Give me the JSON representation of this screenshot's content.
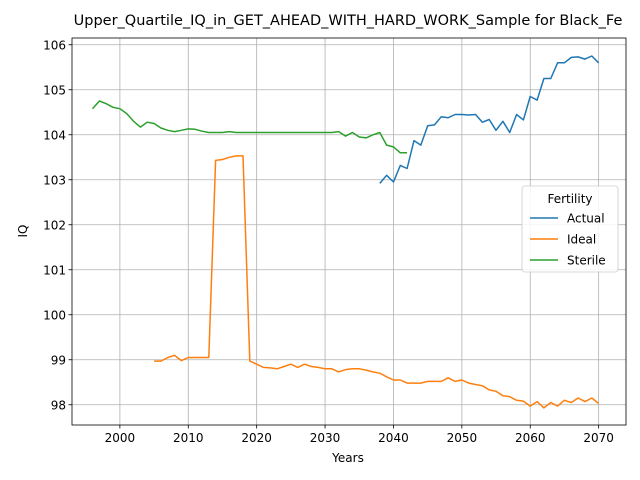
{
  "chart_data": {
    "type": "line",
    "title": "Upper_Quartile_IQ_in_GET_AHEAD_WITH_HARD_WORK_Sample for Black_Fe",
    "xlabel": "Years",
    "ylabel": "IQ",
    "xlim": [
      1993,
      2074
    ],
    "ylim": [
      97.55,
      106.15
    ],
    "xticks": [
      2000,
      2010,
      2020,
      2030,
      2040,
      2050,
      2060,
      2070
    ],
    "yticks": [
      98,
      99,
      100,
      101,
      102,
      103,
      104,
      105,
      106
    ],
    "grid": true,
    "legend": {
      "title": "Fertility",
      "placement": "center-right"
    },
    "series": [
      {
        "name": "Actual",
        "color": "#1f77b4",
        "x": [
          2038,
          2039,
          2040,
          2041,
          2042,
          2043,
          2044,
          2045,
          2046,
          2047,
          2048,
          2049,
          2050,
          2051,
          2052,
          2053,
          2054,
          2055,
          2056,
          2057,
          2058,
          2059,
          2060,
          2061,
          2062,
          2063,
          2064,
          2065,
          2066,
          2067,
          2068,
          2069,
          2070
        ],
        "y": [
          102.92,
          103.1,
          102.95,
          103.32,
          103.25,
          103.87,
          103.77,
          104.2,
          104.22,
          104.4,
          104.38,
          104.45,
          104.45,
          104.44,
          104.45,
          104.28,
          104.34,
          104.1,
          104.3,
          104.05,
          104.45,
          104.33,
          104.85,
          104.77,
          105.25,
          105.25,
          105.6,
          105.6,
          105.72,
          105.73,
          105.68,
          105.75,
          105.6
        ]
      },
      {
        "name": "Ideal",
        "color": "#ff7f0e",
        "x": [
          2005,
          2006,
          2007,
          2008,
          2009,
          2010,
          2011,
          2012,
          2013,
          2014,
          2015,
          2016,
          2017,
          2018,
          2019,
          2020,
          2021,
          2022,
          2023,
          2024,
          2025,
          2026,
          2027,
          2028,
          2029,
          2030,
          2031,
          2032,
          2033,
          2034,
          2035,
          2036,
          2037,
          2038,
          2039,
          2040,
          2041,
          2042,
          2043,
          2044,
          2045,
          2046,
          2047,
          2048,
          2049,
          2050,
          2051,
          2052,
          2053,
          2054,
          2055,
          2056,
          2057,
          2058,
          2059,
          2060,
          2061,
          2062,
          2063,
          2064,
          2065,
          2066,
          2067,
          2068,
          2069,
          2070
        ],
        "y": [
          98.97,
          98.97,
          99.05,
          99.1,
          98.98,
          99.05,
          99.05,
          99.05,
          99.05,
          103.43,
          103.45,
          103.5,
          103.53,
          103.53,
          98.97,
          98.9,
          98.83,
          98.82,
          98.8,
          98.85,
          98.9,
          98.83,
          98.9,
          98.85,
          98.83,
          98.8,
          98.8,
          98.73,
          98.78,
          98.8,
          98.8,
          98.77,
          98.73,
          98.7,
          98.62,
          98.55,
          98.55,
          98.48,
          98.48,
          98.48,
          98.52,
          98.52,
          98.52,
          98.6,
          98.52,
          98.55,
          98.48,
          98.45,
          98.42,
          98.33,
          98.3,
          98.2,
          98.18,
          98.1,
          98.08,
          97.97,
          98.07,
          97.93,
          98.05,
          97.97,
          98.1,
          98.05,
          98.15,
          98.07,
          98.15,
          98.03
        ]
      },
      {
        "name": "Sterile",
        "color": "#2ca02c",
        "x": [
          1996,
          1997,
          1998,
          1999,
          2000,
          2001,
          2002,
          2003,
          2004,
          2005,
          2006,
          2007,
          2008,
          2009,
          2010,
          2011,
          2012,
          2013,
          2014,
          2015,
          2016,
          2017,
          2018,
          2019,
          2020,
          2021,
          2022,
          2023,
          2024,
          2025,
          2026,
          2027,
          2028,
          2029,
          2030,
          2031,
          2032,
          2033,
          2034,
          2035,
          2036,
          2037,
          2038,
          2039,
          2040,
          2041,
          2042
        ],
        "y": [
          104.58,
          104.75,
          104.69,
          104.61,
          104.58,
          104.47,
          104.3,
          104.17,
          104.28,
          104.25,
          104.15,
          104.1,
          104.07,
          104.1,
          104.13,
          104.12,
          104.08,
          104.05,
          104.05,
          104.05,
          104.07,
          104.05,
          104.05,
          104.05,
          104.05,
          104.05,
          104.05,
          104.05,
          104.05,
          104.05,
          104.05,
          104.05,
          104.05,
          104.05,
          104.05,
          104.05,
          104.07,
          103.97,
          104.05,
          103.95,
          103.93,
          104.0,
          104.05,
          103.77,
          103.73,
          103.6,
          103.6
        ]
      }
    ]
  }
}
